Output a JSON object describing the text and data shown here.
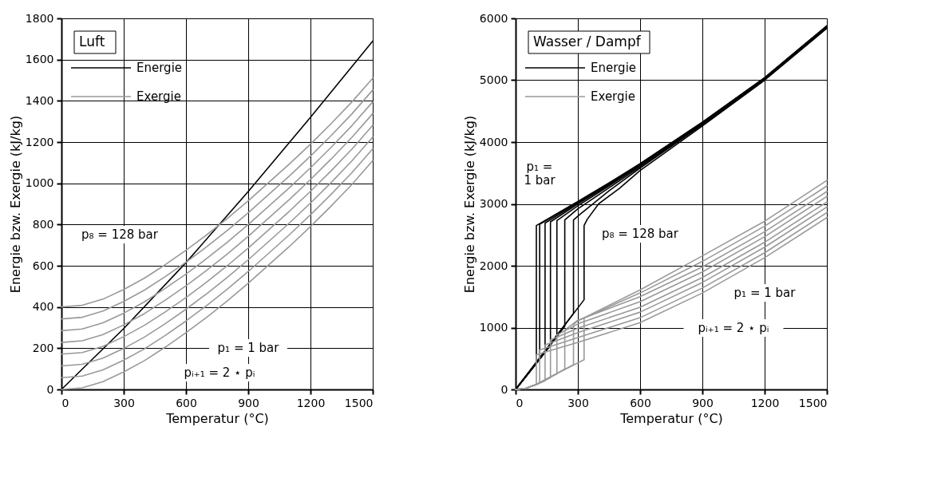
{
  "chart_data": [
    {
      "type": "line",
      "title": "Luft",
      "xlabel": "Temperatur (°C)",
      "ylabel": "Energie bzw. Exergie (kJ/kg)",
      "xlim": [
        0,
        1500
      ],
      "ylim": [
        0,
        1800
      ],
      "xticks": [
        0,
        300,
        600,
        900,
        1200,
        1500
      ],
      "yticks": [
        0,
        200,
        400,
        600,
        800,
        1000,
        1200,
        1400,
        1600,
        1800
      ],
      "grid": true,
      "legend": "top left",
      "series": [
        {
          "name": "Energie",
          "color": "#000000",
          "x": [
            0,
            300,
            600,
            900,
            1200,
            1500
          ],
          "values": [
            0,
            295,
            615,
            960,
            1320,
            1690
          ]
        },
        {
          "name": "Exergie",
          "color": "#999999",
          "x": [
            0,
            100,
            200,
            300,
            400,
            500,
            600,
            700,
            800,
            900,
            1000,
            1100,
            1200,
            1300,
            1400,
            1500
          ],
          "values": [
            0,
            8,
            38,
            85,
            140,
            205,
            275,
            350,
            430,
            515,
            605,
            695,
            790,
            890,
            995,
            1110
          ]
        },
        {
          "color": "#999999",
          "x": [
            0,
            100,
            200,
            300,
            400,
            500,
            600,
            700,
            800,
            900,
            1000,
            1100,
            1200,
            1300,
            1400,
            1500
          ],
          "values": [
            57,
            65,
            95,
            142,
            197,
            262,
            332,
            407,
            487,
            572,
            662,
            752,
            847,
            947,
            1052,
            1167
          ]
        },
        {
          "color": "#999999",
          "x": [
            0,
            100,
            200,
            300,
            400,
            500,
            600,
            700,
            800,
            900,
            1000,
            1100,
            1200,
            1300,
            1400,
            1500
          ],
          "values": [
            114,
            122,
            152,
            199,
            254,
            319,
            389,
            464,
            544,
            629,
            719,
            809,
            904,
            1004,
            1109,
            1224
          ]
        },
        {
          "color": "#999999",
          "x": [
            0,
            100,
            200,
            300,
            400,
            500,
            600,
            700,
            800,
            900,
            1000,
            1100,
            1200,
            1300,
            1400,
            1500
          ],
          "values": [
            171,
            179,
            209,
            256,
            311,
            376,
            446,
            521,
            601,
            686,
            776,
            866,
            961,
            1061,
            1166,
            1281
          ]
        },
        {
          "color": "#999999",
          "x": [
            0,
            100,
            200,
            300,
            400,
            500,
            600,
            700,
            800,
            900,
            1000,
            1100,
            1200,
            1300,
            1400,
            1500
          ],
          "values": [
            228,
            236,
            266,
            313,
            368,
            433,
            503,
            578,
            658,
            743,
            833,
            923,
            1018,
            1118,
            1223,
            1338
          ]
        },
        {
          "color": "#999999",
          "x": [
            0,
            100,
            200,
            300,
            400,
            500,
            600,
            700,
            800,
            900,
            1000,
            1100,
            1200,
            1300,
            1400,
            1500
          ],
          "values": [
            285,
            293,
            323,
            370,
            425,
            490,
            560,
            635,
            715,
            800,
            890,
            980,
            1075,
            1175,
            1280,
            1395
          ]
        },
        {
          "color": "#999999",
          "x": [
            0,
            100,
            200,
            300,
            400,
            500,
            600,
            700,
            800,
            900,
            1000,
            1100,
            1200,
            1300,
            1400,
            1500
          ],
          "values": [
            342,
            350,
            380,
            427,
            482,
            547,
            617,
            692,
            772,
            857,
            947,
            1037,
            1132,
            1232,
            1337,
            1452
          ]
        },
        {
          "color": "#999999",
          "x": [
            0,
            100,
            200,
            300,
            400,
            500,
            600,
            700,
            800,
            900,
            1000,
            1100,
            1200,
            1300,
            1400,
            1500
          ],
          "values": [
            400,
            408,
            438,
            485,
            540,
            605,
            675,
            750,
            830,
            915,
            1005,
            1095,
            1190,
            1290,
            1395,
            1510
          ]
        }
      ],
      "annotations": [
        "p₈ = 128 bar",
        "p₁ = 1 bar",
        "pᵢ₊₁ = 2 ⋆ pᵢ"
      ]
    },
    {
      "type": "line",
      "title": "Wasser / Dampf",
      "xlabel": "Temperatur (°C)",
      "ylabel": "Energie bzw. Exergie (kJ/kg)",
      "xlim": [
        0,
        1500
      ],
      "ylim": [
        0,
        6000
      ],
      "xticks": [
        0,
        300,
        600,
        900,
        1200,
        1500
      ],
      "yticks": [
        0,
        1000,
        2000,
        3000,
        4000,
        5000,
        6000
      ],
      "grid": true,
      "legend": "top left",
      "series": [
        {
          "name": "Energie",
          "color": "#000000",
          "x": [
            0,
            100,
            100,
            300,
            450,
            600,
            900,
            1200,
            1500
          ],
          "values": [
            0,
            420,
            2650,
            3040,
            3340,
            3650,
            4320,
            5040,
            5880
          ]
        },
        {
          "color": "#000000",
          "x": [
            0,
            116,
            116,
            300,
            450,
            600,
            900,
            1200,
            1500
          ],
          "values": [
            0,
            490,
            2670,
            3030,
            3330,
            3650,
            4320,
            5040,
            5880
          ]
        },
        {
          "color": "#000000",
          "x": [
            0,
            142,
            142,
            300,
            450,
            600,
            900,
            1200,
            1500
          ],
          "values": [
            0,
            600,
            2690,
            3020,
            3320,
            3640,
            4310,
            5030,
            5870
          ]
        },
        {
          "color": "#000000",
          "x": [
            0,
            168,
            168,
            300,
            450,
            600,
            900,
            1200,
            1500
          ],
          "values": [
            0,
            710,
            2710,
            3000,
            3310,
            3630,
            4300,
            5020,
            5860
          ]
        },
        {
          "color": "#000000",
          "x": [
            0,
            199,
            199,
            300,
            450,
            600,
            900,
            1200,
            1500
          ],
          "values": [
            0,
            850,
            2730,
            2970,
            3290,
            3620,
            4300,
            5020,
            5860
          ]
        },
        {
          "color": "#000000",
          "x": [
            0,
            237,
            237,
            300,
            450,
            600,
            900,
            1200,
            1500
          ],
          "values": [
            0,
            1020,
            2740,
            2920,
            3260,
            3600,
            4290,
            5010,
            5850
          ]
        },
        {
          "color": "#000000",
          "x": [
            0,
            279,
            279,
            310,
            450,
            600,
            900,
            1200,
            1500
          ],
          "values": [
            0,
            1230,
            2740,
            2830,
            3210,
            3580,
            4280,
            5010,
            5850
          ]
        },
        {
          "color": "#000000",
          "x": [
            0,
            330,
            330,
            345,
            400,
            500,
            600,
            900,
            1200,
            1500
          ],
          "values": [
            0,
            1450,
            2650,
            2750,
            3000,
            3250,
            3540,
            4260,
            5000,
            5840
          ]
        },
        {
          "name": "Exergie",
          "color": "#999999",
          "x": [
            0,
            50,
            100,
            100,
            300,
            600,
            900,
            1200,
            1500
          ],
          "values": [
            0,
            20,
            80,
            560,
            760,
            1080,
            1560,
            2130,
            2780
          ]
        },
        {
          "color": "#999999",
          "x": [
            0,
            50,
            116,
            116,
            300,
            600,
            900,
            1200,
            1500
          ],
          "values": [
            0,
            20,
            100,
            640,
            840,
            1160,
            1640,
            2210,
            2860
          ]
        },
        {
          "color": "#999999",
          "x": [
            0,
            50,
            100,
            142,
            142,
            300,
            600,
            900,
            1200,
            1500
          ],
          "values": [
            0,
            20,
            80,
            140,
            720,
            920,
            1250,
            1730,
            2300,
            2950
          ]
        },
        {
          "color": "#999999",
          "x": [
            0,
            50,
            100,
            168,
            168,
            300,
            600,
            900,
            1200,
            1500
          ],
          "values": [
            0,
            20,
            80,
            190,
            800,
            990,
            1330,
            1810,
            2380,
            3030
          ]
        },
        {
          "color": "#999999",
          "x": [
            0,
            50,
            100,
            199,
            199,
            300,
            600,
            900,
            1200,
            1500
          ],
          "values": [
            0,
            20,
            80,
            250,
            880,
            1060,
            1420,
            1900,
            2470,
            3120
          ]
        },
        {
          "color": "#999999",
          "x": [
            0,
            50,
            100,
            200,
            237,
            237,
            300,
            600,
            900,
            1200,
            1500
          ],
          "values": [
            0,
            20,
            80,
            260,
            330,
            960,
            1120,
            1500,
            1980,
            2550,
            3200
          ]
        },
        {
          "color": "#999999",
          "x": [
            0,
            50,
            100,
            200,
            279,
            279,
            300,
            600,
            900,
            1200,
            1500
          ],
          "values": [
            0,
            20,
            80,
            260,
            400,
            1050,
            1110,
            1560,
            2070,
            2640,
            3290
          ]
        },
        {
          "color": "#999999",
          "x": [
            0,
            50,
            100,
            200,
            330,
            330,
            600,
            900,
            1200,
            1500
          ],
          "values": [
            0,
            20,
            80,
            260,
            480,
            1160,
            1610,
            2160,
            2720,
            3380
          ]
        }
      ],
      "annotations": [
        "p₁ =\n1 bar",
        "p₈ = 128 bar",
        "p₁ = 1 bar",
        "pᵢ₊₁ = 2 ⋆ pᵢ"
      ]
    }
  ]
}
